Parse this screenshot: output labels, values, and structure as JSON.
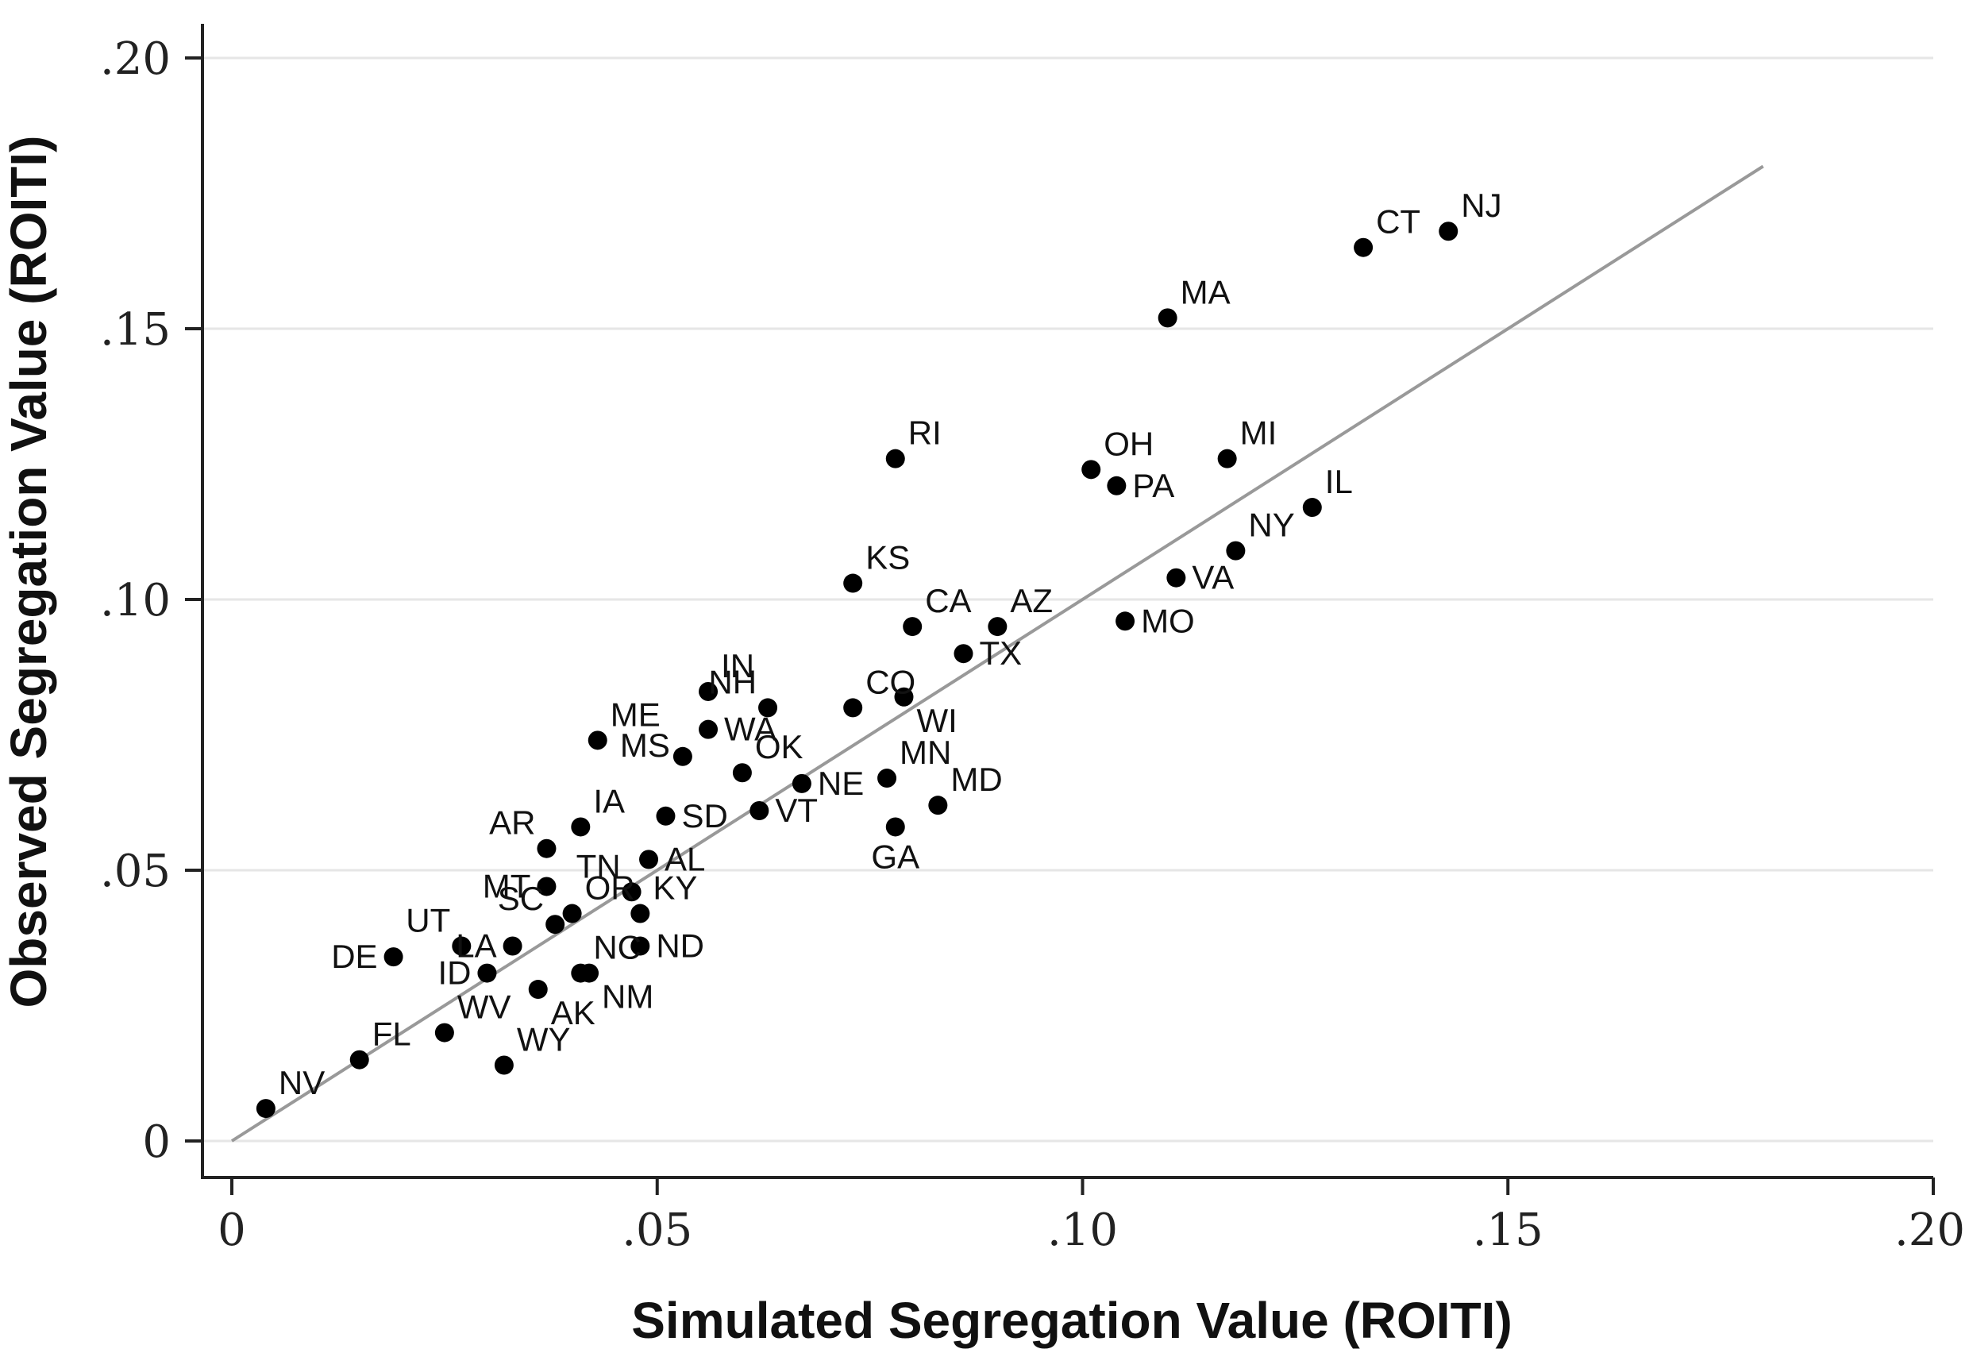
{
  "chart_data": {
    "type": "scatter",
    "xlabel": "Simulated Segregation Value (ROITI)",
    "ylabel": "Observed Segregation Value (ROITI)",
    "xlim": [
      0,
      0.2
    ],
    "ylim": [
      0,
      0.2
    ],
    "x_ticks": [
      {
        "value": 0,
        "label": "0"
      },
      {
        "value": 0.05,
        "label": ".05"
      },
      {
        "value": 0.1,
        "label": ".10"
      },
      {
        "value": 0.15,
        "label": ".15"
      },
      {
        "value": 0.2,
        "label": ".20"
      }
    ],
    "y_ticks": [
      {
        "value": 0,
        "label": "0"
      },
      {
        "value": 0.05,
        "label": ".05"
      },
      {
        "value": 0.1,
        "label": ".10"
      },
      {
        "value": 0.15,
        "label": ".15"
      },
      {
        "value": 0.2,
        "label": ".20"
      }
    ],
    "grid": "horizontal",
    "fit_line": {
      "x": [
        0,
        0.18
      ],
      "y": [
        0,
        0.18
      ]
    },
    "colors": {
      "points": "#000000",
      "fit_line": "#999999",
      "grid": "#e6e6e6",
      "axis": "#222222"
    },
    "points": [
      {
        "label": "NJ",
        "x": 0.143,
        "y": 0.168,
        "pos": "ne"
      },
      {
        "label": "CT",
        "x": 0.133,
        "y": 0.165,
        "pos": "ne"
      },
      {
        "label": "MA",
        "x": 0.11,
        "y": 0.152,
        "pos": "ne"
      },
      {
        "label": "RI",
        "x": 0.078,
        "y": 0.126,
        "pos": "ne"
      },
      {
        "label": "OH",
        "x": 0.101,
        "y": 0.124,
        "pos": "ne"
      },
      {
        "label": "PA",
        "x": 0.104,
        "y": 0.121,
        "pos": "e"
      },
      {
        "label": "MI",
        "x": 0.117,
        "y": 0.126,
        "pos": "ne"
      },
      {
        "label": "IL",
        "x": 0.127,
        "y": 0.117,
        "pos": "ne"
      },
      {
        "label": "NY",
        "x": 0.118,
        "y": 0.109,
        "pos": "ne"
      },
      {
        "label": "KS",
        "x": 0.073,
        "y": 0.103,
        "pos": "ne"
      },
      {
        "label": "VA",
        "x": 0.111,
        "y": 0.104,
        "pos": "e"
      },
      {
        "label": "CA",
        "x": 0.08,
        "y": 0.095,
        "pos": "ne"
      },
      {
        "label": "AZ",
        "x": 0.09,
        "y": 0.095,
        "pos": "ne"
      },
      {
        "label": "MO",
        "x": 0.105,
        "y": 0.096,
        "pos": "e"
      },
      {
        "label": "TX",
        "x": 0.086,
        "y": 0.09,
        "pos": "e"
      },
      {
        "label": "IN",
        "x": 0.056,
        "y": 0.083,
        "pos": "ne"
      },
      {
        "label": "NH",
        "x": 0.063,
        "y": 0.08,
        "pos": "nw"
      },
      {
        "label": "CO",
        "x": 0.073,
        "y": 0.08,
        "pos": "ne"
      },
      {
        "label": "WI",
        "x": 0.079,
        "y": 0.082,
        "pos": "se"
      },
      {
        "label": "ME",
        "x": 0.043,
        "y": 0.074,
        "pos": "ne"
      },
      {
        "label": "WA",
        "x": 0.056,
        "y": 0.076,
        "pos": "e"
      },
      {
        "label": "MN",
        "x": 0.077,
        "y": 0.067,
        "pos": "ne"
      },
      {
        "label": "OK",
        "x": 0.06,
        "y": 0.068,
        "pos": "ne"
      },
      {
        "label": "MS",
        "x": 0.053,
        "y": 0.071,
        "pos": "sw"
      },
      {
        "label": "NE",
        "x": 0.067,
        "y": 0.066,
        "pos": "e"
      },
      {
        "label": "MD",
        "x": 0.083,
        "y": 0.062,
        "pos": "ne"
      },
      {
        "label": "IA",
        "x": 0.041,
        "y": 0.058,
        "pos": "ne"
      },
      {
        "label": "SD",
        "x": 0.051,
        "y": 0.06,
        "pos": "e"
      },
      {
        "label": "VT",
        "x": 0.062,
        "y": 0.061,
        "pos": "e"
      },
      {
        "label": "GA",
        "x": 0.078,
        "y": 0.058,
        "pos": "s"
      },
      {
        "label": "AR",
        "x": 0.037,
        "y": 0.054,
        "pos": "nw"
      },
      {
        "label": "AL",
        "x": 0.049,
        "y": 0.052,
        "pos": "e"
      },
      {
        "label": "TN",
        "x": 0.047,
        "y": 0.046,
        "pos": "nw"
      },
      {
        "label": "MT",
        "x": 0.037,
        "y": 0.047,
        "pos": "w"
      },
      {
        "label": "OR",
        "x": 0.04,
        "y": 0.042,
        "pos": "ne"
      },
      {
        "label": "KY",
        "x": 0.048,
        "y": 0.042,
        "pos": "ne"
      },
      {
        "label": "SC",
        "x": 0.038,
        "y": 0.04,
        "pos": "nw"
      },
      {
        "label": "UT",
        "x": 0.027,
        "y": 0.036,
        "pos": "nw"
      },
      {
        "label": "LA",
        "x": 0.033,
        "y": 0.036,
        "pos": "w"
      },
      {
        "label": "NC",
        "x": 0.041,
        "y": 0.031,
        "pos": "ne"
      },
      {
        "label": "ND",
        "x": 0.048,
        "y": 0.036,
        "pos": "e"
      },
      {
        "label": "DE",
        "x": 0.019,
        "y": 0.034,
        "pos": "w"
      },
      {
        "label": "ID",
        "x": 0.03,
        "y": 0.031,
        "pos": "w"
      },
      {
        "label": "NM",
        "x": 0.042,
        "y": 0.031,
        "pos": "se"
      },
      {
        "label": "AK",
        "x": 0.036,
        "y": 0.028,
        "pos": "se"
      },
      {
        "label": "WV",
        "x": 0.025,
        "y": 0.02,
        "pos": "ne"
      },
      {
        "label": "FL",
        "x": 0.015,
        "y": 0.015,
        "pos": "ne"
      },
      {
        "label": "WY",
        "x": 0.032,
        "y": 0.014,
        "pos": "ne"
      },
      {
        "label": "NV",
        "x": 0.004,
        "y": 0.006,
        "pos": "ne"
      }
    ]
  }
}
